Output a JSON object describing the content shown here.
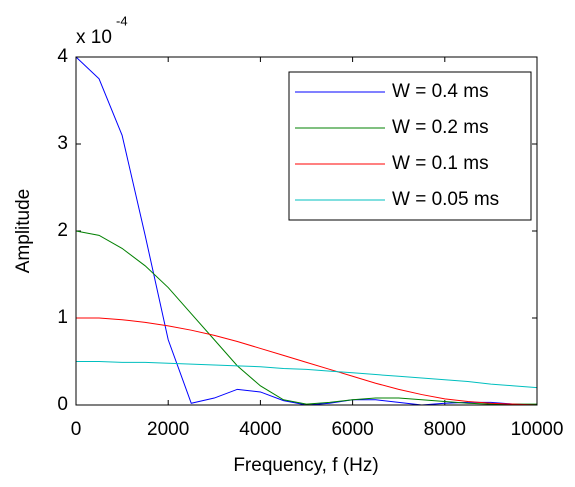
{
  "chart_data": {
    "type": "line",
    "xlabel": "Frequency, f (Hz)",
    "ylabel": "Amplitude",
    "y_exponent": {
      "base": "x 10",
      "power": "-4"
    },
    "x": [
      0,
      500,
      1000,
      1500,
      2000,
      2500,
      3000,
      3500,
      4000,
      4500,
      5000,
      5500,
      6000,
      6500,
      7000,
      7500,
      8000,
      8500,
      9000,
      9500,
      10000
    ],
    "series": [
      {
        "name": "W = 0.4 ms",
        "color": "#0000ff",
        "values": [
          4,
          3.75,
          3.1,
          1.95,
          0.75,
          0.02,
          0.08,
          0.18,
          0.15,
          0.05,
          0,
          0.02,
          0.06,
          0.06,
          0.03,
          0,
          0.02,
          0.03,
          0.03,
          0.01,
          0
        ]
      },
      {
        "name": "W = 0.2 ms",
        "color": "#008000",
        "values": [
          2,
          1.95,
          1.8,
          1.6,
          1.35,
          1.05,
          0.75,
          0.45,
          0.22,
          0.06,
          0.01,
          0.03,
          0.06,
          0.08,
          0.08,
          0.06,
          0.04,
          0.02,
          0.01,
          0.01,
          0.01
        ]
      },
      {
        "name": "W = 0.1 ms",
        "color": "#ff0000",
        "values": [
          1,
          1,
          0.98,
          0.95,
          0.91,
          0.86,
          0.8,
          0.73,
          0.65,
          0.57,
          0.49,
          0.41,
          0.33,
          0.25,
          0.18,
          0.12,
          0.07,
          0.04,
          0.02,
          0.01,
          0
        ]
      },
      {
        "name": "W = 0.05 ms",
        "color": "#00bfbf",
        "values": [
          0.5,
          0.5,
          0.49,
          0.49,
          0.48,
          0.47,
          0.46,
          0.45,
          0.44,
          0.42,
          0.41,
          0.39,
          0.37,
          0.35,
          0.33,
          0.31,
          0.29,
          0.27,
          0.24,
          0.22,
          0.2
        ]
      }
    ],
    "xlim": [
      0,
      10000
    ],
    "xticks": [
      0,
      2000,
      4000,
      6000,
      8000,
      10000
    ],
    "ylim": [
      0,
      4
    ],
    "yticks": [
      0,
      1,
      2,
      3,
      4
    ],
    "legend": "northeast"
  }
}
